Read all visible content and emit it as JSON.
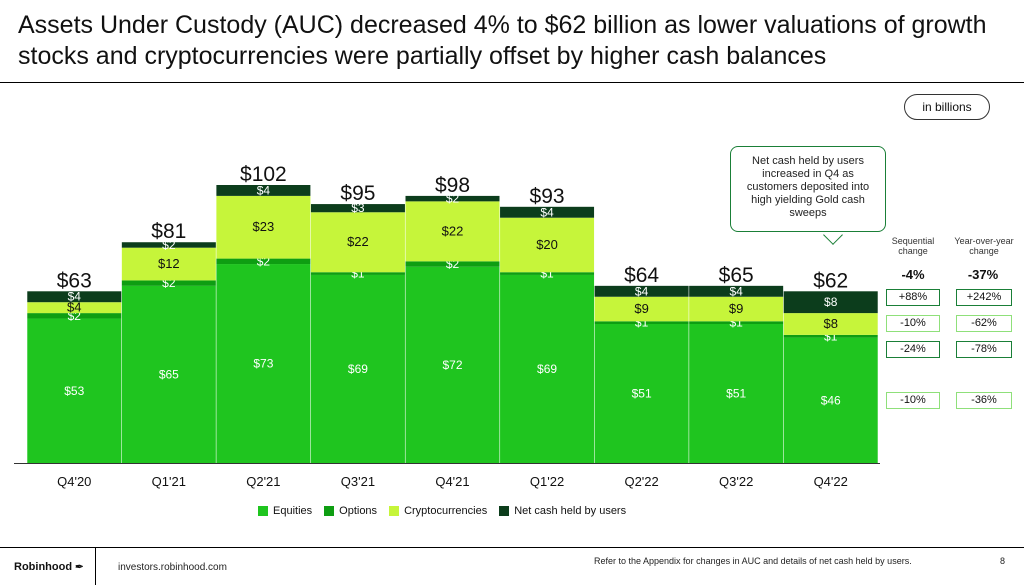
{
  "title": "Assets Under Custody (AUC) decreased 4% to $62 billion as lower valuations of growth stocks and cryptocurrencies were partially offset by higher cash balances",
  "units_label": "in billions",
  "callout": "Net cash held by users increased in Q4 as customers deposited into high yielding Gold cash sweeps",
  "colors": {
    "equities": "#1fc51f",
    "options": "#0e9e12",
    "cryptocurrencies": "#c6f53a",
    "net_cash": "#0c3d1c",
    "box_dark": "#1a7f37",
    "box_light": "#8fe07a"
  },
  "chart_data": {
    "type": "bar",
    "stacked": true,
    "categories": [
      "Q4'20",
      "Q1'21",
      "Q2'21",
      "Q3'21",
      "Q4'21",
      "Q1'22",
      "Q2'22",
      "Q3'22",
      "Q4'22"
    ],
    "totals": [
      "$63",
      "$81",
      "$102",
      "$95",
      "$98",
      "$93",
      "$64",
      "$65",
      "$62"
    ],
    "total_values": [
      63,
      81,
      102,
      95,
      98,
      93,
      64,
      65,
      62
    ],
    "series": [
      {
        "name": "Equities",
        "values": [
          53,
          65,
          73,
          69,
          72,
          69,
          51,
          51,
          46
        ],
        "labels": [
          "$53",
          "$65",
          "$73",
          "$69",
          "$72",
          "$69",
          "$51",
          "$51",
          "$46"
        ]
      },
      {
        "name": "Options",
        "values": [
          2,
          2,
          2,
          1,
          2,
          1,
          1,
          1,
          1
        ],
        "labels": [
          "$2",
          "$2",
          "$2",
          "$1",
          "$2",
          "$1",
          "$1",
          "$1",
          "$1"
        ]
      },
      {
        "name": "Cryptocurrencies",
        "values": [
          4,
          12,
          23,
          22,
          22,
          20,
          9,
          9,
          8
        ],
        "labels": [
          "$4",
          "$12",
          "$23",
          "$22",
          "$22",
          "$20",
          "$9",
          "$9",
          "$8"
        ]
      },
      {
        "name": "Net cash held by users",
        "values": [
          4,
          2,
          4,
          3,
          2,
          4,
          4,
          4,
          8
        ],
        "labels": [
          "$4",
          "$2",
          "$4",
          "$3",
          "$2",
          "$4",
          "$4",
          "$4",
          "$8"
        ]
      }
    ],
    "ylim": [
      0,
      110
    ]
  },
  "changes": {
    "sequential_header": "Sequential change",
    "yoy_header": "Year-over-year change",
    "total": {
      "sequential": "-4%",
      "yoy": "-37%"
    },
    "rows": [
      {
        "series": "Net cash held by users",
        "sequential": "+88%",
        "yoy": "+242%"
      },
      {
        "series": "Cryptocurrencies",
        "sequential": "-10%",
        "yoy": "-62%"
      },
      {
        "series": "Options",
        "sequential": "-24%",
        "yoy": "-78%"
      },
      {
        "series": "Equities",
        "sequential": "-10%",
        "yoy": "-36%"
      }
    ]
  },
  "footer": {
    "brand": "Robinhood",
    "url": "investors.robinhood.com",
    "note": "Refer to the Appendix for changes in AUC and details of net cash held by users.",
    "page": "8"
  }
}
